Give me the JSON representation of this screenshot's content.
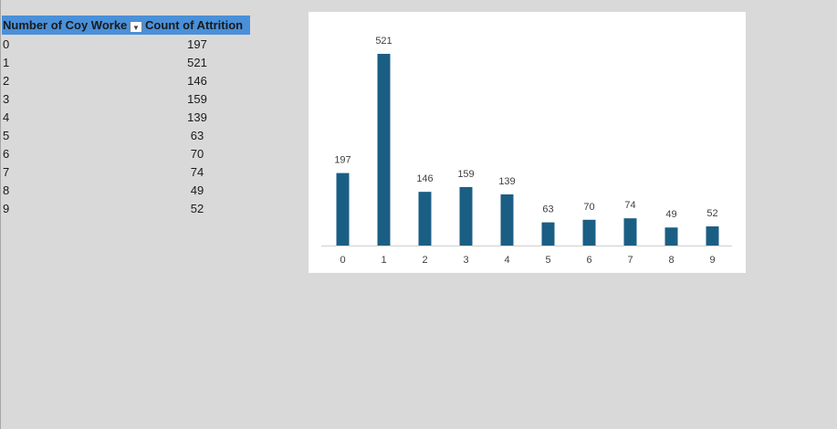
{
  "pivot": {
    "header_row_label": "Number of Coy Worke",
    "header_value": "Count of Attrition",
    "rows": [
      {
        "label": "0",
        "value": "197"
      },
      {
        "label": "1",
        "value": "521"
      },
      {
        "label": "2",
        "value": "146"
      },
      {
        "label": "3",
        "value": "159"
      },
      {
        "label": "4",
        "value": "139"
      },
      {
        "label": "5",
        "value": "63"
      },
      {
        "label": "6",
        "value": "70"
      },
      {
        "label": "7",
        "value": "74"
      },
      {
        "label": "8",
        "value": "49"
      },
      {
        "label": "9",
        "value": "52"
      }
    ]
  },
  "chart_data": {
    "type": "bar",
    "categories": [
      "0",
      "1",
      "2",
      "3",
      "4",
      "5",
      "6",
      "7",
      "8",
      "9"
    ],
    "values": [
      197,
      521,
      146,
      159,
      139,
      63,
      70,
      74,
      49,
      52
    ],
    "title": "",
    "xlabel": "",
    "ylabel": "",
    "ylim": [
      0,
      521
    ],
    "grid": false,
    "legend": "none",
    "bar_color": "#1b5e84",
    "data_labels": true
  },
  "colors": {
    "header_bg": "#4a90d9",
    "sheet_bg": "#d9d9d9"
  }
}
